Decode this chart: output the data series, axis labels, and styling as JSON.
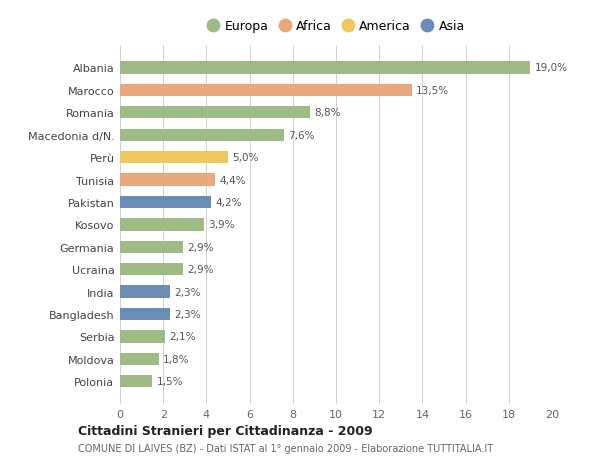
{
  "countries": [
    "Albania",
    "Marocco",
    "Romania",
    "Macedonia d/N.",
    "Perù",
    "Tunisia",
    "Pakistan",
    "Kosovo",
    "Germania",
    "Ucraina",
    "India",
    "Bangladesh",
    "Serbia",
    "Moldova",
    "Polonia"
  ],
  "values": [
    19.0,
    13.5,
    8.8,
    7.6,
    5.0,
    4.4,
    4.2,
    3.9,
    2.9,
    2.9,
    2.3,
    2.3,
    2.1,
    1.8,
    1.5
  ],
  "labels": [
    "19,0%",
    "13,5%",
    "8,8%",
    "7,6%",
    "5,0%",
    "4,4%",
    "4,2%",
    "3,9%",
    "2,9%",
    "2,9%",
    "2,3%",
    "2,3%",
    "2,1%",
    "1,8%",
    "1,5%"
  ],
  "continents": [
    "Europa",
    "Africa",
    "Europa",
    "Europa",
    "America",
    "Africa",
    "Asia",
    "Europa",
    "Europa",
    "Europa",
    "Asia",
    "Asia",
    "Europa",
    "Europa",
    "Europa"
  ],
  "colors": {
    "Europa": "#9eba85",
    "Africa": "#e8a87c",
    "America": "#f0c75e",
    "Asia": "#6b8db5"
  },
  "legend_order": [
    "Europa",
    "Africa",
    "America",
    "Asia"
  ],
  "xlim": [
    0,
    20
  ],
  "xticks": [
    0,
    2,
    4,
    6,
    8,
    10,
    12,
    14,
    16,
    18,
    20
  ],
  "title": "Cittadini Stranieri per Cittadinanza - 2009",
  "subtitle": "COMUNE DI LAIVES (BZ) - Dati ISTAT al 1° gennaio 2009 - Elaborazione TUTTITALIA.IT",
  "bg_color": "#ffffff",
  "grid_color": "#d0d0d0"
}
